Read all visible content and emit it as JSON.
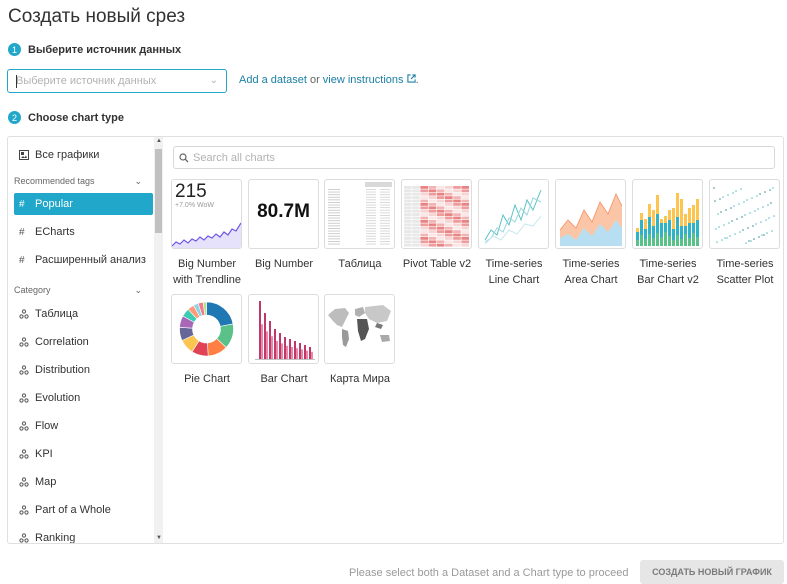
{
  "header": {
    "title": "Создать новый срез"
  },
  "steps": [
    {
      "num": "1",
      "label": "Выберите источник данных"
    },
    {
      "num": "2",
      "label": "Choose chart type"
    }
  ],
  "dataset": {
    "placeholder": "Выберите источник данных",
    "add_link": "Add a dataset",
    "or_text": "or",
    "instructions_link": "view instructions",
    "end_text": "."
  },
  "sidebar": {
    "all_charts": "Все графики",
    "recommended_heading": "Recommended tags",
    "tags": [
      "Popular",
      "ECharts",
      "Расширенный анализ"
    ],
    "category_heading": "Category",
    "categories": [
      "Таблица",
      "Correlation",
      "Distribution",
      "Evolution",
      "Flow",
      "KPI",
      "Map",
      "Part of a Whole",
      "Ranking"
    ],
    "selected_tag": "Popular"
  },
  "search": {
    "placeholder": "Search all charts"
  },
  "charts": [
    {
      "id": "big-number-trendline",
      "label": "Big Number with Trendline",
      "thumb_value": "215",
      "thumb_sub": "+7.0% WoW"
    },
    {
      "id": "big-number",
      "label": "Big Number",
      "thumb_value": "80.7M"
    },
    {
      "id": "table",
      "label": "Таблица"
    },
    {
      "id": "pivot-table-v2",
      "label": "Pivot Table v2"
    },
    {
      "id": "timeseries-line",
      "label": "Time-series Line Chart"
    },
    {
      "id": "timeseries-area",
      "label": "Time-series Area Chart"
    },
    {
      "id": "timeseries-bar-v2",
      "label": "Time-series Bar Chart v2"
    },
    {
      "id": "timeseries-scatter",
      "label": "Time-series Scatter Plot"
    },
    {
      "id": "pie",
      "label": "Pie Chart"
    },
    {
      "id": "bar",
      "label": "Bar Chart"
    },
    {
      "id": "world-map",
      "label": "Карта Мира"
    }
  ],
  "footer": {
    "message": "Please select both a Dataset and a Chart type to proceed",
    "create_label": "СОЗДАТЬ НОВЫЙ ГРАФИК"
  },
  "colors": {
    "accent": "#20a7c9",
    "link": "#1b7fa5"
  }
}
